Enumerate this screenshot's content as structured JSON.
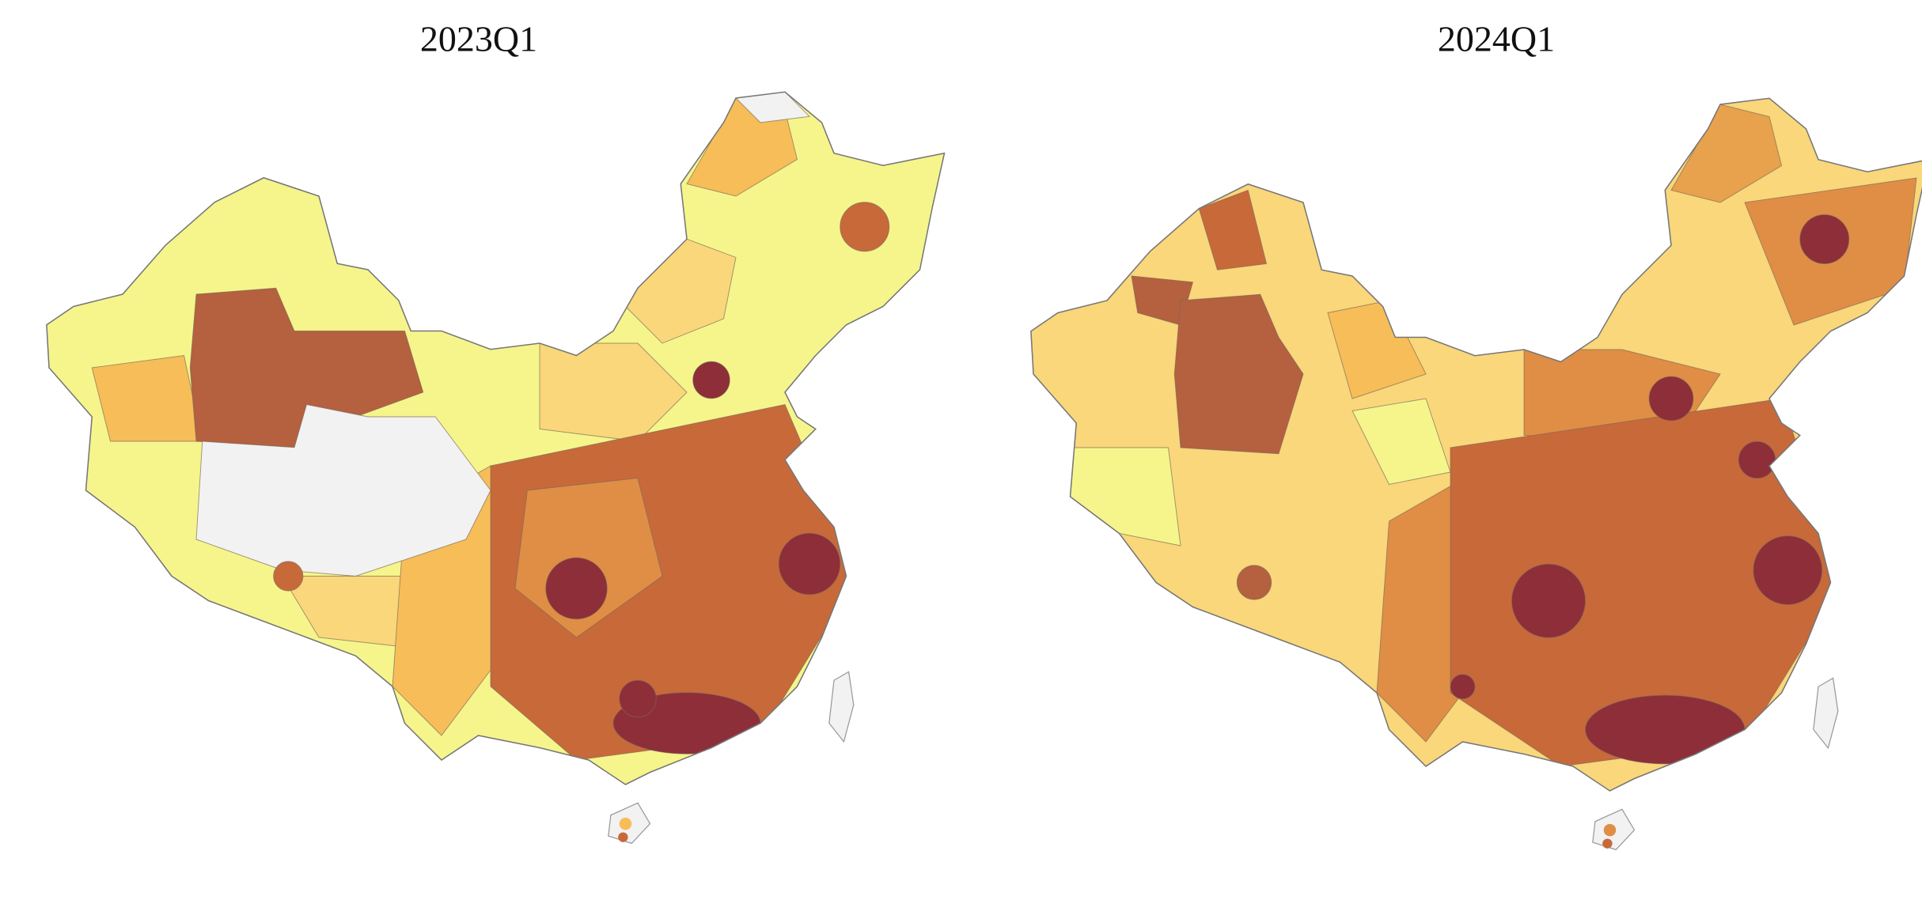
{
  "maps": [
    {
      "title": "2023Q1"
    },
    {
      "title": "2024Q1"
    }
  ]
}
